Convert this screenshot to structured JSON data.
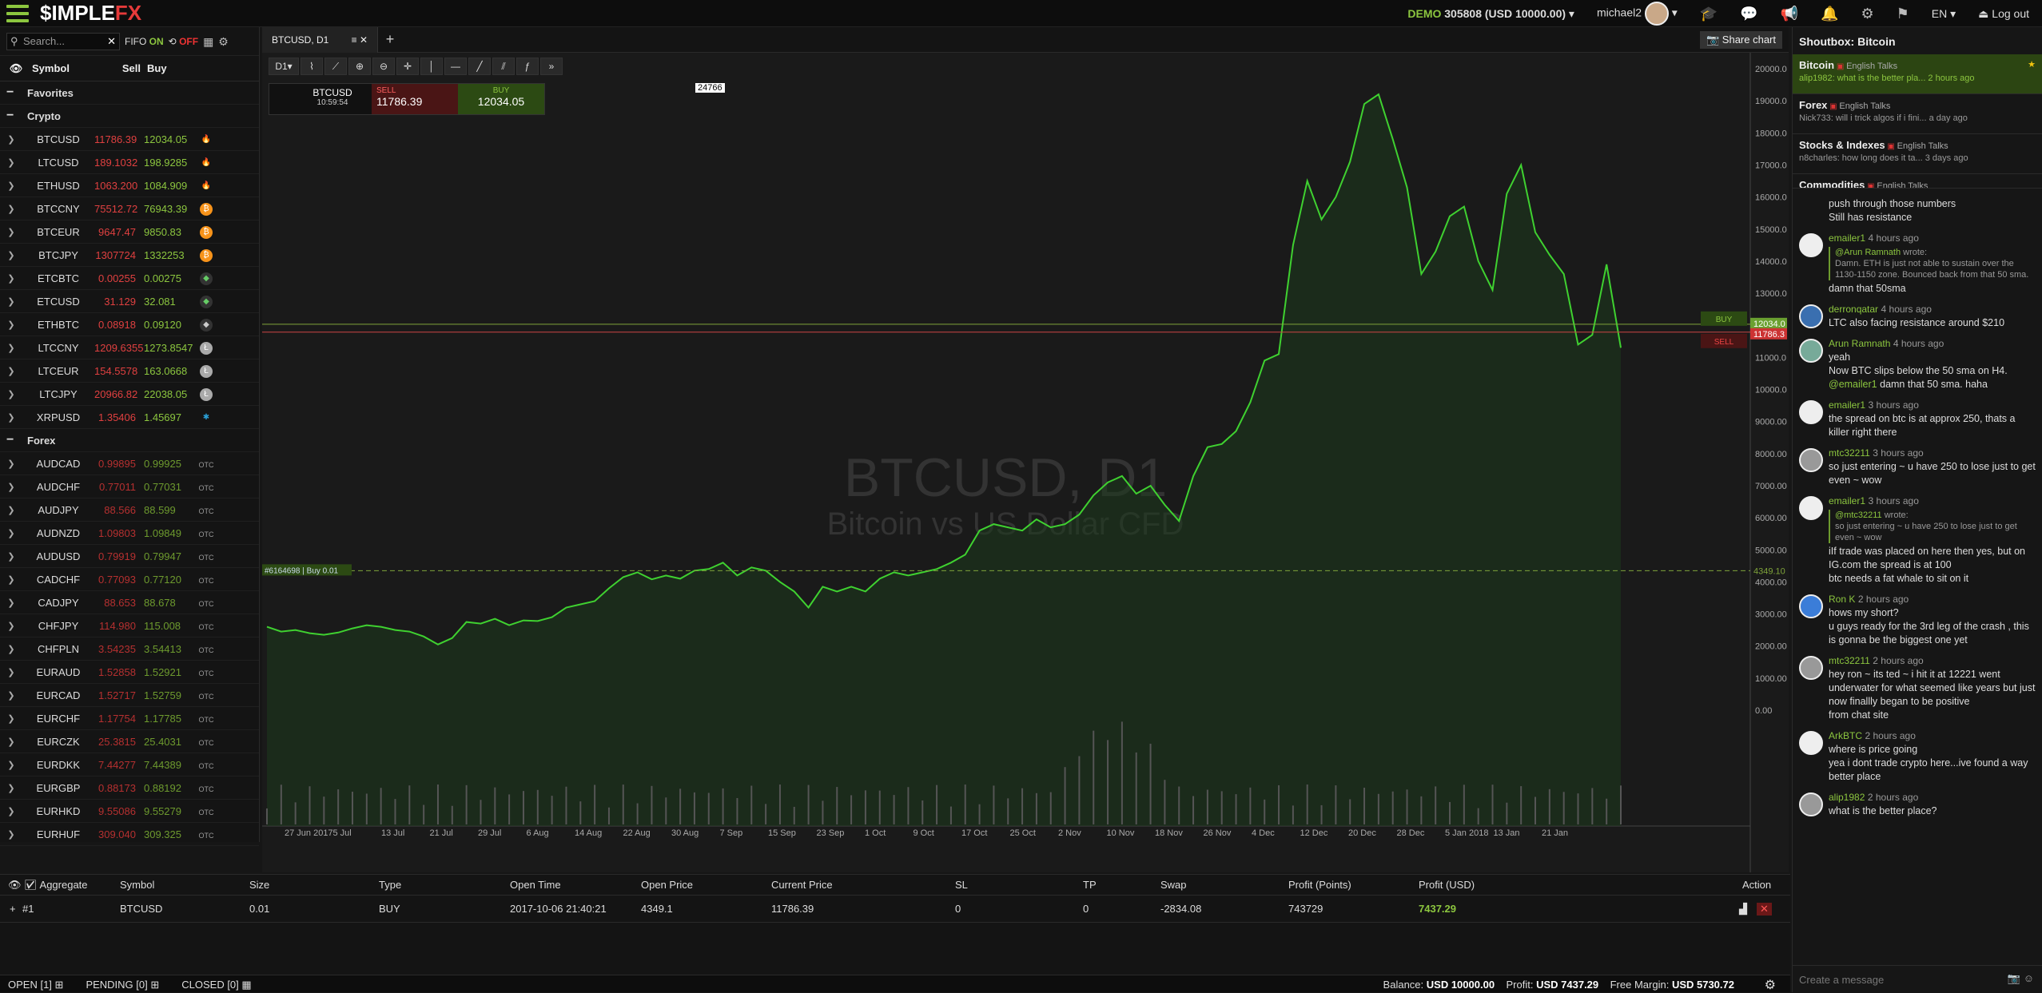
{
  "app": {
    "logo_main": "$IMPLE",
    "logo_accent": "FX"
  },
  "topbar": {
    "demo_label": "DEMO",
    "account": "305808 (USD 10000.00)",
    "user": "michael2",
    "lang": "EN",
    "logout": "Log out"
  },
  "left": {
    "search_placeholder": "Search...",
    "fifo_label": "FIFO",
    "fifo_on": "ON",
    "fifo_off": "OFF",
    "col_symbol": "Symbol",
    "col_sell": "Sell",
    "col_buy": "Buy",
    "favorites": "Favorites",
    "crypto": "Crypto",
    "forex": "Forex",
    "crypto_rows": [
      {
        "sym": "BTCUSD",
        "sell": "11786.39",
        "buy": "12034.05",
        "icon": "fire-icon"
      },
      {
        "sym": "LTCUSD",
        "sell": "189.1032",
        "buy": "198.9285",
        "icon": "fire-icon"
      },
      {
        "sym": "ETHUSD",
        "sell": "1063.200",
        "buy": "1084.909",
        "icon": "fire-icon"
      },
      {
        "sym": "BTCCNY",
        "sell": "75512.72",
        "buy": "76943.39",
        "icon": "bitcoin-icon"
      },
      {
        "sym": "BTCEUR",
        "sell": "9647.47",
        "buy": "9850.83",
        "icon": "bitcoin-icon"
      },
      {
        "sym": "BTCJPY",
        "sell": "1307724",
        "buy": "1332253",
        "icon": "bitcoin-icon"
      },
      {
        "sym": "ETCBTC",
        "sell": "0.00255",
        "buy": "0.00275",
        "icon": "ethereum-classic-icon"
      },
      {
        "sym": "ETCUSD",
        "sell": "31.129",
        "buy": "32.081",
        "icon": "ethereum-classic-icon"
      },
      {
        "sym": "ETHBTC",
        "sell": "0.08918",
        "buy": "0.09120",
        "icon": "ethereum-icon"
      },
      {
        "sym": "LTCCNY",
        "sell": "1209.6355",
        "buy": "1273.8547",
        "icon": "litecoin-icon"
      },
      {
        "sym": "LTCEUR",
        "sell": "154.5578",
        "buy": "163.0668",
        "icon": "litecoin-icon"
      },
      {
        "sym": "LTCJPY",
        "sell": "20966.82",
        "buy": "22038.05",
        "icon": "litecoin-icon"
      },
      {
        "sym": "XRPUSD",
        "sell": "1.35406",
        "buy": "1.45697",
        "icon": "ripple-icon"
      }
    ],
    "forex_rows": [
      {
        "sym": "AUDCAD",
        "sell": "0.99895",
        "buy": "0.99925"
      },
      {
        "sym": "AUDCHF",
        "sell": "0.77011",
        "buy": "0.77031"
      },
      {
        "sym": "AUDJPY",
        "sell": "88.566",
        "buy": "88.599"
      },
      {
        "sym": "AUDNZD",
        "sell": "1.09803",
        "buy": "1.09849"
      },
      {
        "sym": "AUDUSD",
        "sell": "0.79919",
        "buy": "0.79947"
      },
      {
        "sym": "CADCHF",
        "sell": "0.77093",
        "buy": "0.77120"
      },
      {
        "sym": "CADJPY",
        "sell": "88.653",
        "buy": "88.678"
      },
      {
        "sym": "CHFJPY",
        "sell": "114.980",
        "buy": "115.008"
      },
      {
        "sym": "CHFPLN",
        "sell": "3.54235",
        "buy": "3.54413"
      },
      {
        "sym": "EURAUD",
        "sell": "1.52858",
        "buy": "1.52921"
      },
      {
        "sym": "EURCAD",
        "sell": "1.52717",
        "buy": "1.52759"
      },
      {
        "sym": "EURCHF",
        "sell": "1.17754",
        "buy": "1.17785"
      },
      {
        "sym": "EURCZK",
        "sell": "25.3815",
        "buy": "25.4031"
      },
      {
        "sym": "EURDKK",
        "sell": "7.44277",
        "buy": "7.44389"
      },
      {
        "sym": "EURGBP",
        "sell": "0.88173",
        "buy": "0.88192"
      },
      {
        "sym": "EURHKD",
        "sell": "9.55086",
        "buy": "9.55279"
      },
      {
        "sym": "EURHUF",
        "sell": "309.040",
        "buy": "309.325"
      }
    ],
    "otc": "OTC"
  },
  "chart": {
    "tab": "BTCUSD, D1",
    "share": "Share chart",
    "timeframe": "D1",
    "trade_symbol": "BTCUSD",
    "trade_time": "10:59:54",
    "sell_label": "SELL",
    "sell_price": "11786.39",
    "buy_label": "BUY",
    "buy_price": "12034.05",
    "spread": "24766",
    "watermark_title": "BTCUSD, D1",
    "watermark_sub": "Bitcoin vs US Dollar CFD",
    "order_label": "#6164698 | Buy 0.01",
    "buy_tag": "BUY",
    "sell_tag": "SELL",
    "buy_axis": "12034.0",
    "sell_axis": "11786.3",
    "order_axis": "4349.10"
  },
  "chart_data": {
    "type": "area",
    "y_ticks": [
      0,
      1000,
      2000,
      3000,
      4000,
      5000,
      6000,
      7000,
      8000,
      9000,
      10000,
      11000,
      12000,
      13000,
      14000,
      15000,
      16000,
      17000,
      18000,
      19000,
      20000
    ],
    "y_tick_labels": [
      "0.00",
      "1000.00",
      "2000.00",
      "3000.00",
      "4000.00",
      "5000.00",
      "6000.00",
      "7000.00",
      "8000.00",
      "9000.00",
      "10000.0",
      "11000.0",
      "12000.0",
      "13000.0",
      "14000.0",
      "15000.0",
      "16000.0",
      "17000.0",
      "18000.0",
      "19000.0",
      "20000.0"
    ],
    "ylim": [
      0,
      20000
    ],
    "x_labels": [
      "27 Jun 2017",
      "5 Jul",
      "13 Jul",
      "21 Jul",
      "29 Jul",
      "6 Aug",
      "14 Aug",
      "22 Aug",
      "30 Aug",
      "7 Sep",
      "15 Sep",
      "23 Sep",
      "1 Oct",
      "9 Oct",
      "17 Oct",
      "25 Oct",
      "2 Nov",
      "10 Nov",
      "18 Nov",
      "26 Nov",
      "4 Dec",
      "12 Dec",
      "20 Dec",
      "28 Dec",
      "5 Jan 2018",
      "13 Jan",
      "21 Jan"
    ],
    "close": [
      2600,
      2450,
      2500,
      2400,
      2350,
      2420,
      2550,
      2650,
      2600,
      2500,
      2450,
      2300,
      2050,
      2250,
      2750,
      2700,
      2850,
      2650,
      2800,
      2780,
      2900,
      3200,
      3300,
      3400,
      3800,
      4150,
      4300,
      4080,
      4200,
      4100,
      4350,
      4400,
      4600,
      4200,
      4450,
      4350,
      4000,
      3700,
      3200,
      3850,
      3700,
      3850,
      3700,
      4100,
      4300,
      4200,
      4300,
      4400,
      4600,
      4850,
      5600,
      5800,
      5700,
      5600,
      5950,
      5700,
      5800,
      6100,
      6700,
      7100,
      7300,
      6750,
      7000,
      6400,
      5900,
      7300,
      8200,
      8300,
      8700,
      9600,
      10900,
      11100,
      14500,
      16500,
      15300,
      16000,
      17100,
      18900,
      19200,
      17800,
      16300,
      13600,
      14300,
      15400,
      15700,
      14000,
      13100,
      16100,
      17000,
      14900,
      14200,
      13600,
      11400,
      11700,
      13900,
      11300
    ]
  },
  "positions": {
    "headers": [
      "Aggregate",
      "Symbol",
      "Size",
      "Type",
      "Open Time",
      "Open Price",
      "Current Price",
      "SL",
      "TP",
      "Swap",
      "Profit (Points)",
      "Profit (USD)",
      "Action"
    ],
    "row": {
      "id": "#1",
      "symbol": "BTCUSD",
      "size": "0.01",
      "type": "BUY",
      "open_time": "2017-10-06 21:40:21",
      "open_price": "4349.1",
      "current_price": "11786.39",
      "sl": "0",
      "tp": "0",
      "swap": "-2834.08",
      "profit_points": "743729",
      "profit_usd": "7437.29"
    }
  },
  "bottom": {
    "open": "OPEN [1]",
    "pending": "PENDING [0]",
    "closed": "CLOSED [0]",
    "balance_label": "Balance:",
    "balance": "USD 10000.00",
    "profit_label": "Profit:",
    "profit": "USD 7437.29",
    "margin_label": "Free Margin:",
    "margin": "USD 5730.72"
  },
  "shout": {
    "title": "Shoutbox: Bitcoin",
    "rooms": [
      {
        "name": "Bitcoin",
        "tag": "English Talks",
        "last": "alip1982: what is the better pla... 2 hours ago"
      },
      {
        "name": "Forex",
        "tag": "English Talks",
        "last": "Nick733: will i trick algos if i fini...  a day ago"
      },
      {
        "name": "Stocks & Indexes",
        "tag": "English Talks",
        "last": "n8charles: how long does it ta...  3 days ago"
      },
      {
        "name": "Commodities",
        "tag": "English Talks",
        "last": ""
      }
    ],
    "messages": [
      {
        "name": "",
        "time": "",
        "quote": "",
        "lines": [
          "push through those numbers",
          "Still has resistance"
        ]
      },
      {
        "name": "emailer1",
        "time": "4 hours ago",
        "quote_by": "@Arun Ramnath",
        "quote": "Damn. ETH is just not able to sustain over the 1130-1150 zone. Bounced back from that 50 sma.",
        "lines": [
          "damn that 50sma"
        ]
      },
      {
        "name": "derronqatar",
        "time": "4 hours ago",
        "quote": "",
        "lines": [
          "LTC also facing resistance around $210"
        ]
      },
      {
        "name": "Arun Ramnath",
        "time": "4 hours ago",
        "quote": "",
        "lines": [
          "yeah",
          "Now BTC slips below the 50 sma on H4."
        ],
        "mention": "@emailer1",
        "mention_text": " damn that 50 sma. haha"
      },
      {
        "name": "emailer1",
        "time": "3 hours ago",
        "quote": "",
        "lines": [
          "the spread on btc is at approx 250, thats a killer right there"
        ]
      },
      {
        "name": "mtc32211",
        "time": "3 hours ago",
        "quote": "",
        "lines": [
          "so just entering ~ u have 250 to lose just to get even ~ wow"
        ]
      },
      {
        "name": "emailer1",
        "time": "3 hours ago",
        "quote_by": "@mtc32211",
        "quote": "so just entering ~ u have 250 to lose just to get even ~ wow",
        "lines": [
          "iIf trade was placed on here then yes, but on IG.com the spread is at 100",
          "btc needs a fat whale to sit on it"
        ]
      },
      {
        "name": "Ron K",
        "time": "2 hours ago",
        "quote": "",
        "lines": [
          "hows my short?",
          "u guys ready for the 3rd leg of the crash , this is gonna be the biggest one yet"
        ]
      },
      {
        "name": "mtc32211",
        "time": "2 hours ago",
        "quote": "",
        "lines": [
          "hey ron ~ its ted ~ i hit it at 12221 went underwater for what seemed like years but just now finallly began to be positive",
          "from chat site"
        ]
      },
      {
        "name": "ArkBTC",
        "time": "2 hours ago",
        "quote": "",
        "lines": [
          "where is price going",
          "yea i dont trade crypto here...ive found a way better place"
        ]
      },
      {
        "name": "alip1982",
        "time": "2 hours ago",
        "quote": "",
        "lines": [
          "what is the better place?"
        ]
      }
    ],
    "input_placeholder": "Create a message"
  }
}
